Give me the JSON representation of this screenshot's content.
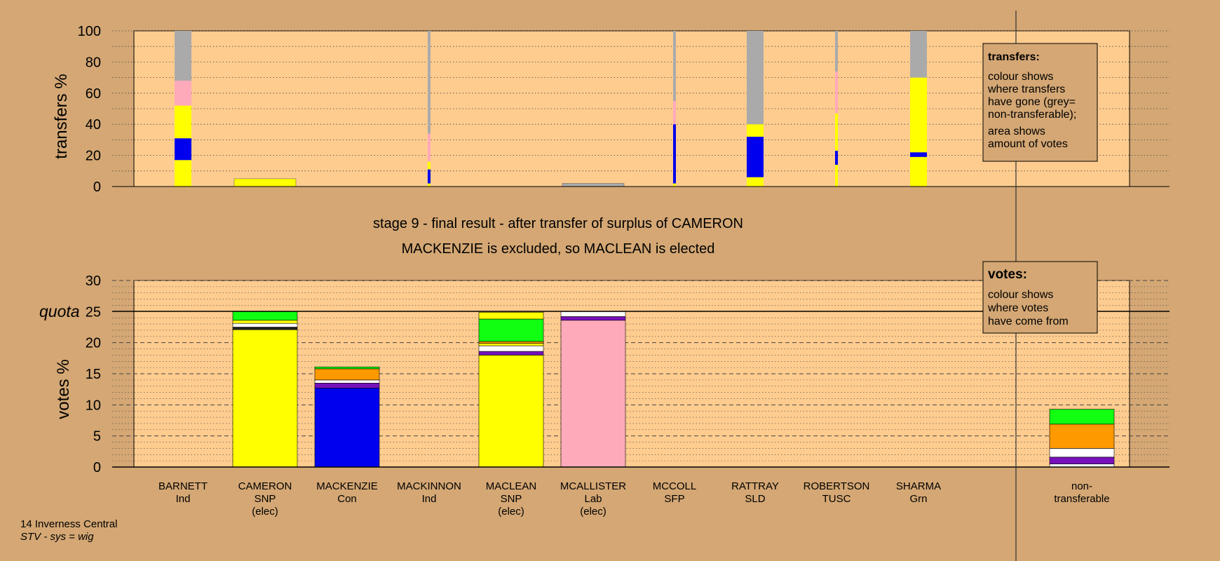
{
  "colors": {
    "background": "#d4a774",
    "plot_area": "#ffcc8f",
    "yellow_snp": "#ffff00",
    "blue_con": "#0000ee",
    "pink_lab": "#ffaabb",
    "grey_nontransferable": "#aaaaaa",
    "green": "#11ff11",
    "orange": "#ff9900",
    "purple": "#7711bb",
    "white": "#ffffff",
    "dark": "#222222"
  },
  "labels": {
    "stage_title": "stage 9 - final result - after transfer of surplus of CAMERON",
    "stage_subtitle": "MACKENZIE is excluded, so MACLEAN is elected",
    "footer_line1": "14 Inverness Central",
    "footer_line2": "STV - sys = wig"
  },
  "chart_data": [
    {
      "id": "transfers",
      "type": "bar",
      "ylabel": "transfers %",
      "ylim": [
        0,
        100
      ],
      "yticks": [
        0,
        20,
        40,
        60,
        80,
        100
      ],
      "legend": {
        "title": "transfers:",
        "lines": [
          "colour shows",
          "where transfers",
          "have gone (grey=",
          "non-transferable);",
          "",
          "area shows",
          "amount of votes"
        ]
      },
      "bars": [
        {
          "candidate": "BARNETT",
          "width": "narrow",
          "segments": [
            {
              "c": "yellow_snp",
              "v": 17
            },
            {
              "c": "blue_con",
              "v": 14
            },
            {
              "c": "yellow_snp",
              "v": 21
            },
            {
              "c": "pink_lab",
              "v": 16
            },
            {
              "c": "grey_nontransferable",
              "v": 32
            }
          ]
        },
        {
          "candidate": "CAMERON",
          "width": "full",
          "segments": [
            {
              "c": "yellow_snp",
              "v": 5
            }
          ]
        },
        {
          "candidate": "MACKINNON",
          "width": "thin",
          "segments": [
            {
              "c": "yellow_snp",
              "v": 2
            },
            {
              "c": "blue_con",
              "v": 9
            },
            {
              "c": "yellow_snp",
              "v": 5
            },
            {
              "c": "pink_lab",
              "v": 18
            },
            {
              "c": "grey_nontransferable",
              "v": 66
            }
          ]
        },
        {
          "candidate": "MCALLISTER",
          "width": "full",
          "segments": [
            {
              "c": "grey_nontransferable",
              "v": 2
            }
          ]
        },
        {
          "candidate": "MCCOLL",
          "width": "thin",
          "segments": [
            {
              "c": "yellow_snp",
              "v": 2
            },
            {
              "c": "blue_con",
              "v": 38
            },
            {
              "c": "pink_lab",
              "v": 15
            },
            {
              "c": "grey_nontransferable",
              "v": 45
            }
          ]
        },
        {
          "candidate": "RATTRAY",
          "width": "narrow",
          "segments": [
            {
              "c": "yellow_snp",
              "v": 6
            },
            {
              "c": "blue_con",
              "v": 26
            },
            {
              "c": "yellow_snp",
              "v": 8
            },
            {
              "c": "grey_nontransferable",
              "v": 60
            }
          ]
        },
        {
          "candidate": "ROBERTSON",
          "width": "thin",
          "segments": [
            {
              "c": "yellow_snp",
              "v": 14
            },
            {
              "c": "blue_con",
              "v": 9
            },
            {
              "c": "yellow_snp",
              "v": 24
            },
            {
              "c": "pink_lab",
              "v": 27
            },
            {
              "c": "grey_nontransferable",
              "v": 26
            }
          ]
        },
        {
          "candidate": "SHARMA",
          "width": "narrow",
          "segments": [
            {
              "c": "yellow_snp",
              "v": 19
            },
            {
              "c": "blue_con",
              "v": 3
            },
            {
              "c": "yellow_snp",
              "v": 48
            },
            {
              "c": "grey_nontransferable",
              "v": 30
            }
          ]
        }
      ]
    },
    {
      "id": "votes",
      "type": "bar",
      "ylabel": "votes %",
      "ylim": [
        0,
        30
      ],
      "yticks": [
        0,
        5,
        10,
        15,
        20,
        25,
        30
      ],
      "quota": 25,
      "quota_label": "quota",
      "legend": {
        "title": "votes:",
        "lines": [
          "colour shows",
          "where votes",
          "have come from"
        ]
      },
      "categories": [
        {
          "name": "BARNETT",
          "party": "Ind",
          "status": ""
        },
        {
          "name": "CAMERON",
          "party": "SNP",
          "status": "(elec)"
        },
        {
          "name": "MACKENZIE",
          "party": "Con",
          "status": ""
        },
        {
          "name": "MACKINNON",
          "party": "Ind",
          "status": ""
        },
        {
          "name": "MACLEAN",
          "party": "SNP",
          "status": "(elec)"
        },
        {
          "name": "MCALLISTER",
          "party": "Lab",
          "status": "(elec)"
        },
        {
          "name": "MCCOLL",
          "party": "SFP",
          "status": ""
        },
        {
          "name": "RATTRAY",
          "party": "SLD",
          "status": ""
        },
        {
          "name": "ROBERTSON",
          "party": "TUSC",
          "status": ""
        },
        {
          "name": "SHARMA",
          "party": "Grn",
          "status": ""
        }
      ],
      "nontransferable_label": [
        "non-",
        "transferable"
      ],
      "bars": [
        {
          "candidate": "CAMERON",
          "segments": [
            {
              "c": "yellow_snp",
              "v": 22.1
            },
            {
              "c": "dark",
              "v": 0.4
            },
            {
              "c": "white",
              "v": 0.6
            },
            {
              "c": "yellow_snp",
              "v": 0.5
            },
            {
              "c": "green",
              "v": 1.4
            }
          ]
        },
        {
          "candidate": "MACKENZIE",
          "segments": [
            {
              "c": "blue_con",
              "v": 12.7
            },
            {
              "c": "purple",
              "v": 0.8
            },
            {
              "c": "white",
              "v": 0.5
            },
            {
              "c": "orange",
              "v": 1.8
            },
            {
              "c": "green",
              "v": 0.3
            }
          ]
        },
        {
          "candidate": "MACLEAN",
          "segments": [
            {
              "c": "yellow_snp",
              "v": 18
            },
            {
              "c": "purple",
              "v": 0.6
            },
            {
              "c": "white",
              "v": 0.9
            },
            {
              "c": "yellow_snp",
              "v": 0.4
            },
            {
              "c": "orange",
              "v": 0.3
            },
            {
              "c": "green",
              "v": 3.6
            },
            {
              "c": "yellow_snp",
              "v": 1.1
            }
          ]
        },
        {
          "candidate": "MCALLISTER",
          "segments": [
            {
              "c": "pink_lab",
              "v": 23.6
            },
            {
              "c": "purple",
              "v": 0.6
            },
            {
              "c": "white",
              "v": 0.8
            }
          ]
        },
        {
          "candidate": "non-transferable",
          "segments": [
            {
              "c": "white",
              "v": 0.5
            },
            {
              "c": "purple",
              "v": 1.1
            },
            {
              "c": "white",
              "v": 1.4
            },
            {
              "c": "orange",
              "v": 3.9
            },
            {
              "c": "green",
              "v": 2.4
            }
          ]
        }
      ]
    }
  ]
}
